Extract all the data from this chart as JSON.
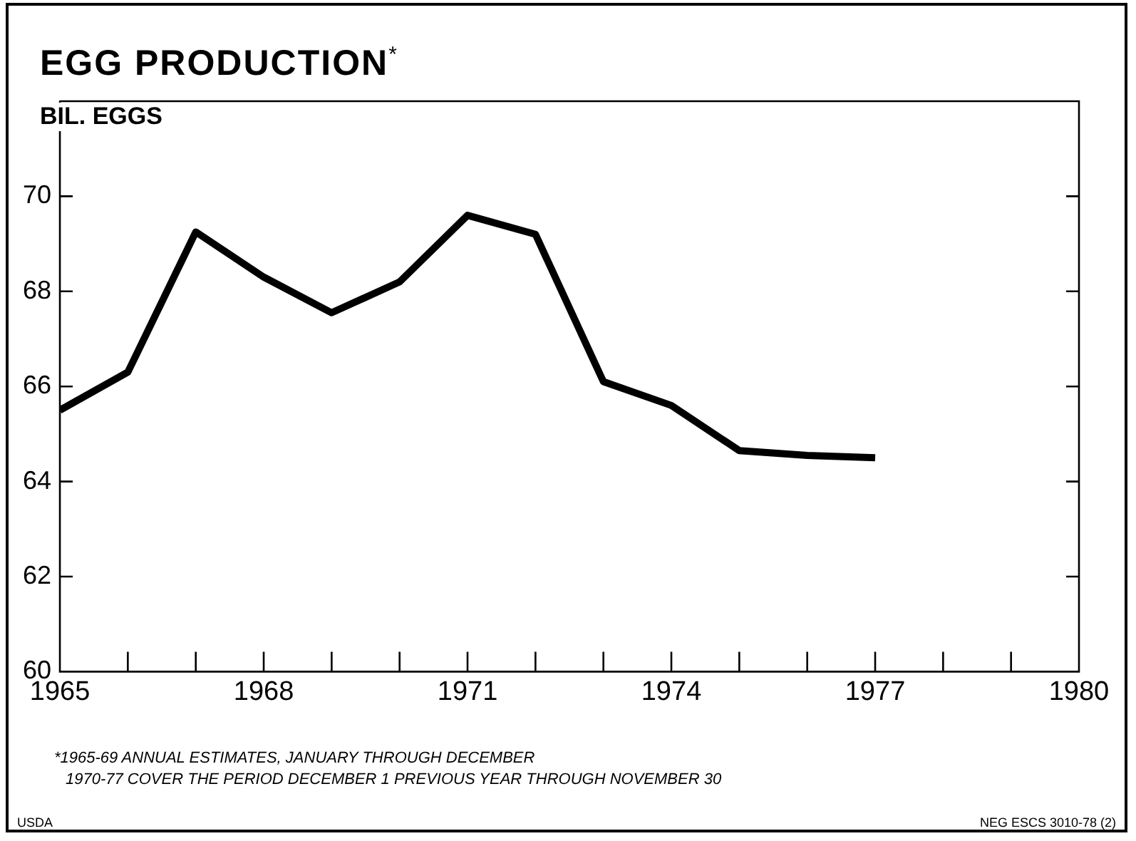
{
  "chart_data": {
    "type": "line",
    "title": "EGG PRODUCTION$^{*}$",
    "ylabel": "BIL. EGGS",
    "x": [
      1965,
      1966,
      1967,
      1968,
      1969,
      1970,
      1971,
      1972,
      1973,
      1974,
      1975,
      1976,
      1977
    ],
    "series": [
      {
        "color": "#000000",
        "values": [
          65.5,
          66.3,
          69.25,
          68.3,
          67.55,
          68.2,
          69.6,
          69.2,
          66.1,
          65.6,
          64.65,
          64.55,
          64.5
        ]
      }
    ],
    "xlim": [
      1965,
      1980
    ],
    "xticks": [
      1965,
      {
        "value": 1966,
        "label": null
      },
      {
        "value": 1967,
        "label": null
      },
      1968,
      {
        "value": 1969,
        "label": null
      },
      {
        "value": 1970,
        "label": null
      },
      1971,
      {
        "value": 1972,
        "label": null
      },
      {
        "value": 1973,
        "label": null
      },
      1974,
      {
        "value": 1975,
        "label": null
      },
      {
        "value": 1976,
        "label": null
      },
      1977,
      {
        "value": 1978,
        "label": null
      },
      {
        "value": 1979,
        "label": null
      },
      1980
    ],
    "ylim": [
      60,
      72
    ],
    "yticks": [
      60,
      62,
      64,
      66,
      68,
      70
    ],
    "marker": "none",
    "line_style": "solid",
    "annotations": [
      "*1965-69 ANNUAL ESTIMATES, JANUARY THROUGH DECEMBER",
      "1970-77 COVER THE PERIOD DECEMBER 1 PREVIOUS YEAR THROUGH NOVEMBER 30",
      "USDA",
      "NEG ESCS 3010-78 (2)"
    ]
  }
}
